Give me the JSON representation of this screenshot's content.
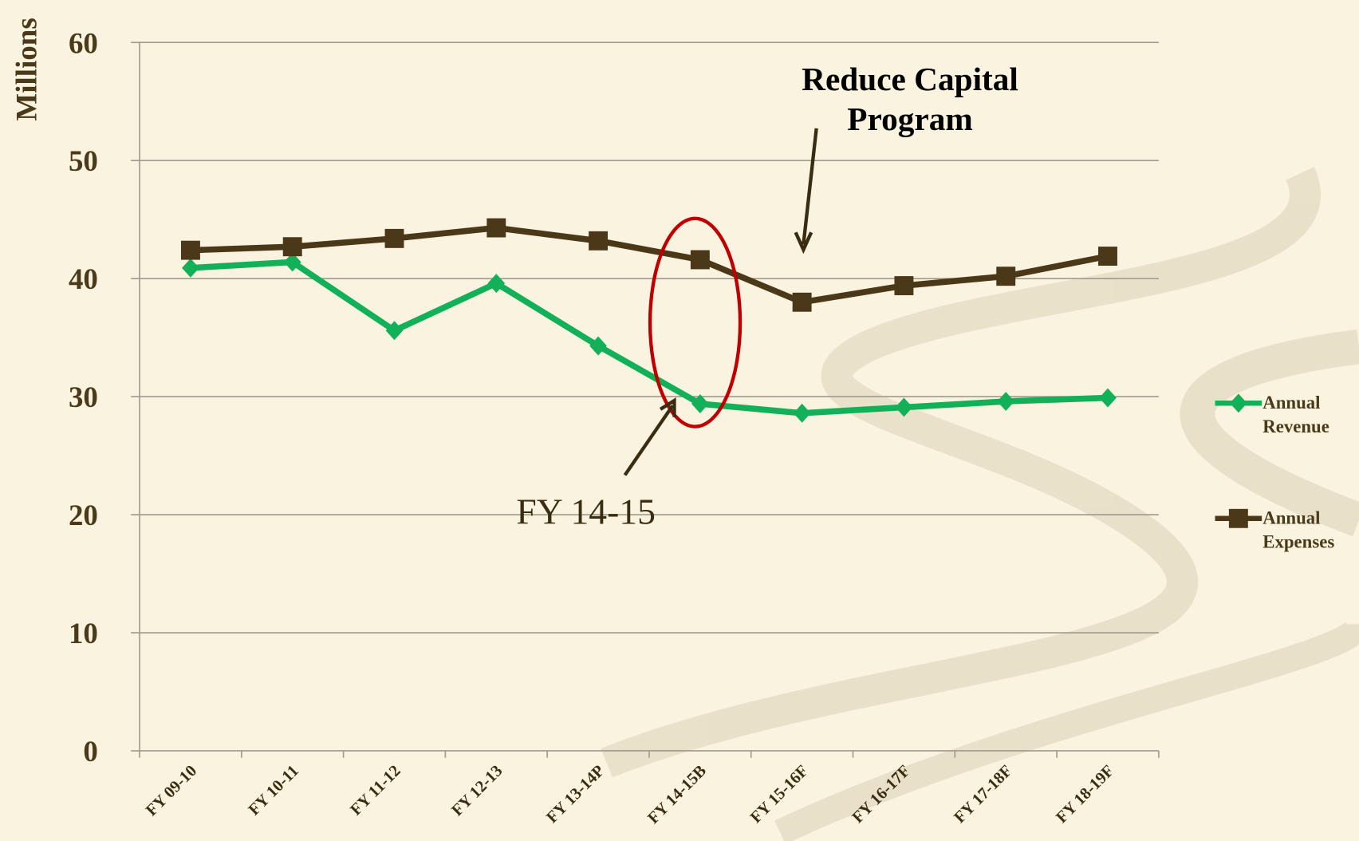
{
  "chart_data": {
    "type": "line",
    "y_label": "Millions",
    "categories": [
      "FY 09-10",
      "FY 10-11",
      "FY 11-12",
      "FY 12-13",
      "FY 13-14P",
      "FY 14-15B",
      "FY 15-16F",
      "FY 16-17F",
      "FY 17-18F",
      "FY 18-19F"
    ],
    "series": [
      {
        "name": "Annual Revenue",
        "color": "#12b058",
        "marker": "diamond",
        "values": [
          40.9,
          41.4,
          35.6,
          39.6,
          34.3,
          29.4,
          28.6,
          29.1,
          29.6,
          29.9
        ]
      },
      {
        "name": "Annual Expenses",
        "color": "#4a3818",
        "marker": "square",
        "values": [
          42.4,
          42.7,
          43.4,
          44.3,
          43.2,
          41.6,
          38.0,
          39.4,
          40.2,
          41.9
        ]
      }
    ],
    "ylim": [
      0,
      60
    ],
    "yticks": [
      0,
      10,
      20,
      30,
      40,
      50,
      60
    ],
    "grid": true,
    "annotations": {
      "capital": [
        "Reduce Capital",
        "Program"
      ],
      "highlight": "FY 14-15"
    }
  }
}
